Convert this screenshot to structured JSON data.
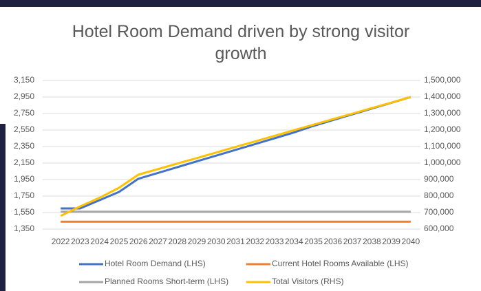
{
  "chart_data": {
    "type": "line",
    "title": "Hotel Room Demand driven by strong visitor growth",
    "categories": [
      "2022",
      "2023",
      "2024",
      "2025",
      "2026",
      "2027",
      "2028",
      "2029",
      "2030",
      "2031",
      "2032",
      "2033",
      "2034",
      "2035",
      "2036",
      "2037",
      "2038",
      "2039",
      "2040"
    ],
    "series": [
      {
        "name": "Hotel Room Demand (LHS)",
        "color": "#4472c4",
        "values": [
          1600,
          1600,
          1700,
          1800,
          1960,
          2030,
          2100,
          2170,
          2240,
          2310,
          2380,
          2450,
          2520,
          2600,
          2670,
          2740,
          2810,
          2880,
          2950
        ]
      },
      {
        "name": "Current Hotel Rooms Available (LHS)",
        "color": "#ed7d31",
        "values": [
          1440,
          1440,
          1440,
          1440,
          1440,
          1440,
          1440,
          1440,
          1440,
          1440,
          1440,
          1440,
          1440,
          1440,
          1440,
          1440,
          1440,
          1440,
          1440
        ]
      },
      {
        "name": "Planned Rooms Short-term (LHS)",
        "color": "#a5a5a5",
        "values": [
          1560,
          1560,
          1560,
          1560,
          1560,
          1560,
          1560,
          1560,
          1560,
          1560,
          1560,
          1560,
          1560,
          1560,
          1560,
          1560,
          1560,
          1560,
          1560
        ]
      },
      {
        "name": "Total Visitors (RHS)",
        "color": "#ffc000",
        "axis": "y2",
        "values": [
          680000,
          737000,
          790000,
          850000,
          930000,
          963000,
          997000,
          1030000,
          1064000,
          1098000,
          1131000,
          1165000,
          1199000,
          1232000,
          1266000,
          1299000,
          1333000,
          1366000,
          1400000
        ]
      }
    ],
    "ylim": [
      1350,
      3150
    ],
    "yticks": [
      {
        "value": 1350,
        "label": "1,350"
      },
      {
        "value": 1550,
        "label": "1,550"
      },
      {
        "value": 1750,
        "label": "1,750"
      },
      {
        "value": 1950,
        "label": "1,950"
      },
      {
        "value": 2150,
        "label": "2,150"
      },
      {
        "value": 2350,
        "label": "2,350"
      },
      {
        "value": 2550,
        "label": "2,550"
      },
      {
        "value": 2750,
        "label": "2,750"
      },
      {
        "value": 2950,
        "label": "2,950"
      },
      {
        "value": 3150,
        "label": "3,150"
      }
    ],
    "y2lim": [
      600000,
      1500000
    ],
    "y2ticks": [
      {
        "value": 600000,
        "label": "600,000"
      },
      {
        "value": 700000,
        "label": "700,000"
      },
      {
        "value": 800000,
        "label": "800,000"
      },
      {
        "value": 900000,
        "label": "900,000"
      },
      {
        "value": 1000000,
        "label": "1,000,000"
      },
      {
        "value": 1100000,
        "label": "1,100,000"
      },
      {
        "value": 1200000,
        "label": "1,200,000"
      },
      {
        "value": 1300000,
        "label": "1,300,000"
      },
      {
        "value": 1400000,
        "label": "1,400,000"
      },
      {
        "value": 1500000,
        "label": "1,500,000"
      }
    ],
    "grid": true,
    "legend": "bottom"
  }
}
